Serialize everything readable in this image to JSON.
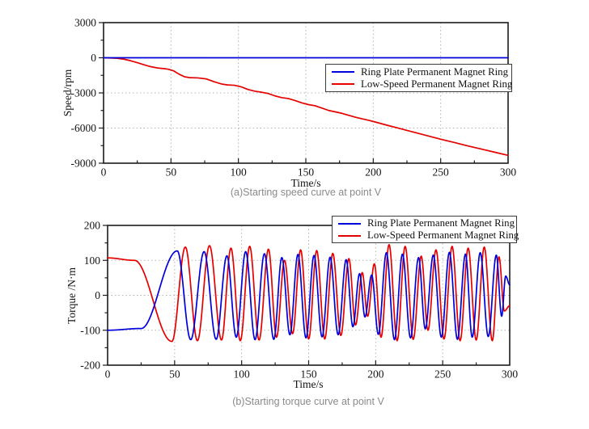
{
  "page": {
    "background": "#ffffff"
  },
  "colors": {
    "blue": "#0000dd",
    "red": "#e60000",
    "grid": "#b4b4b4",
    "caption": "#8a8a8a"
  },
  "chart_data": [
    {
      "id": "speed",
      "type": "line",
      "caption": "(a)Starting speed curve at point V",
      "xlabel": "Time/s",
      "ylabel": "Speed/rpm",
      "xlim": [
        0,
        300
      ],
      "ylim": [
        -9000,
        3000
      ],
      "xticks": [
        0,
        50,
        100,
        150,
        200,
        250,
        300
      ],
      "yticks": [
        3000,
        0,
        -3000,
        -6000,
        -9000
      ],
      "x_minor_step": 25,
      "y_minor_step": 1500,
      "grid": true,
      "legend": {
        "position": "inside-upper-right",
        "entries": [
          {
            "label": "Ring Plate Permanent Magnet Ring",
            "color": "#0000dd"
          },
          {
            "label": "Low-Speed Permanent Magnet Ring",
            "color": "#e60000"
          }
        ]
      },
      "series": [
        {
          "name": "Ring Plate Permanent Magnet Ring",
          "color": "#0000dd",
          "interp": "linear",
          "points": [
            [
              0,
              0
            ],
            [
              300,
              0
            ]
          ]
        },
        {
          "name": "Low-Speed Permanent Magnet Ring",
          "color": "#e60000",
          "interp": "linear",
          "points": [
            [
              0,
              0
            ],
            [
              5,
              -15
            ],
            [
              10,
              -45
            ],
            [
              15,
              -120
            ],
            [
              20,
              -250
            ],
            [
              25,
              -420
            ],
            [
              30,
              -600
            ],
            [
              35,
              -760
            ],
            [
              40,
              -870
            ],
            [
              45,
              -930
            ],
            [
              48,
              -980
            ],
            [
              52,
              -1120
            ],
            [
              56,
              -1400
            ],
            [
              60,
              -1620
            ],
            [
              64,
              -1700
            ],
            [
              70,
              -1720
            ],
            [
              76,
              -1800
            ],
            [
              82,
              -2050
            ],
            [
              88,
              -2250
            ],
            [
              92,
              -2320
            ],
            [
              97,
              -2350
            ],
            [
              102,
              -2480
            ],
            [
              107,
              -2700
            ],
            [
              112,
              -2850
            ],
            [
              117,
              -2940
            ],
            [
              122,
              -3050
            ],
            [
              127,
              -3250
            ],
            [
              132,
              -3400
            ],
            [
              137,
              -3480
            ],
            [
              142,
              -3650
            ],
            [
              147,
              -3850
            ],
            [
              152,
              -4000
            ],
            [
              157,
              -4100
            ],
            [
              162,
              -4300
            ],
            [
              167,
              -4500
            ],
            [
              172,
              -4620
            ],
            [
              177,
              -4750
            ],
            [
              182,
              -4920
            ],
            [
              187,
              -5080
            ],
            [
              192,
              -5220
            ],
            [
              197,
              -5350
            ],
            [
              202,
              -5500
            ],
            [
              210,
              -5750
            ],
            [
              220,
              -6050
            ],
            [
              230,
              -6350
            ],
            [
              240,
              -6650
            ],
            [
              250,
              -6950
            ],
            [
              260,
              -7230
            ],
            [
              270,
              -7520
            ],
            [
              280,
              -7790
            ],
            [
              290,
              -8060
            ],
            [
              300,
              -8330
            ]
          ]
        }
      ]
    },
    {
      "id": "torque",
      "type": "line",
      "caption": "(b)Starting torque curve at point V",
      "xlabel": "Time/s",
      "ylabel": "Torque /N·m",
      "xlim": [
        0,
        300
      ],
      "ylim": [
        -200,
        200
      ],
      "xticks": [
        0,
        50,
        100,
        150,
        200,
        250,
        300
      ],
      "yticks": [
        200,
        100,
        0,
        -100,
        -200
      ],
      "x_minor_step": 25,
      "y_minor_step": 50,
      "grid": true,
      "legend": {
        "position": "inside-upper-right",
        "entries": [
          {
            "label": "Ring Plate Permanent Magnet Ring",
            "color": "#0000dd"
          },
          {
            "label": "Low-Speed Permanent Magnet Ring",
            "color": "#e60000"
          }
        ]
      },
      "series": [
        {
          "name": "Ring Plate Permanent Magnet Ring",
          "color": "#0000dd",
          "interp": "cosine-extrema",
          "points": [
            [
              0,
              -100
            ],
            [
              25,
              -95
            ],
            [
              52,
              127
            ],
            [
              62,
              -127
            ],
            [
              72,
              125
            ],
            [
              81,
              -126
            ],
            [
              89,
              113
            ],
            [
              96,
              -120
            ],
            [
              103,
              125
            ],
            [
              110,
              -127
            ],
            [
              117,
              119
            ],
            [
              124,
              -126
            ],
            [
              130,
              108
            ],
            [
              136,
              -113
            ],
            [
              142,
              117
            ],
            [
              148,
              -122
            ],
            [
              154,
              114
            ],
            [
              160,
              -119
            ],
            [
              166,
              109
            ],
            [
              172,
              -113
            ],
            [
              178,
              102
            ],
            [
              183,
              -90
            ],
            [
              188,
              62
            ],
            [
              192,
              -62
            ],
            [
              197,
              58
            ],
            [
              202,
              -112
            ],
            [
              208,
              122
            ],
            [
              214,
              -127
            ],
            [
              220,
              118
            ],
            [
              226,
              -122
            ],
            [
              232,
              108
            ],
            [
              237,
              -96
            ],
            [
              243,
              115
            ],
            [
              249,
              -120
            ],
            [
              255,
              123
            ],
            [
              261,
              -126
            ],
            [
              267,
              118
            ],
            [
              272,
              -120
            ],
            [
              278,
              122
            ],
            [
              284,
              -118
            ],
            [
              290,
              115
            ],
            [
              294,
              -60
            ],
            [
              297,
              55
            ],
            [
              300,
              30
            ]
          ]
        },
        {
          "name": "Low-Speed Permanent Magnet Ring",
          "color": "#e60000",
          "interp": "cosine-extrema",
          "points": [
            [
              0,
              107
            ],
            [
              20,
              100
            ],
            [
              48,
              -132
            ],
            [
              58,
              138
            ],
            [
              67,
              -130
            ],
            [
              76,
              142
            ],
            [
              85,
              -128
            ],
            [
              92,
              135
            ],
            [
              99,
              -130
            ],
            [
              106,
              140
            ],
            [
              113,
              -128
            ],
            [
              120,
              132
            ],
            [
              126,
              -120
            ],
            [
              132,
              100
            ],
            [
              138,
              -110
            ],
            [
              144,
              130
            ],
            [
              150,
              -125
            ],
            [
              156,
              128
            ],
            [
              162,
              -125
            ],
            [
              168,
              120
            ],
            [
              174,
              -115
            ],
            [
              180,
              105
            ],
            [
              185,
              -85
            ],
            [
              190,
              65
            ],
            [
              194,
              -60
            ],
            [
              199,
              90
            ],
            [
              204,
              -120
            ],
            [
              210,
              145
            ],
            [
              216,
              -130
            ],
            [
              222,
              140
            ],
            [
              228,
              -126
            ],
            [
              234,
              112
            ],
            [
              239,
              -100
            ],
            [
              245,
              130
            ],
            [
              251,
              -125
            ],
            [
              257,
              140
            ],
            [
              263,
              -130
            ],
            [
              269,
              135
            ],
            [
              275,
              -128
            ],
            [
              281,
              138
            ],
            [
              287,
              -130
            ],
            [
              292,
              110
            ],
            [
              296,
              -45
            ],
            [
              300,
              -30
            ]
          ]
        }
      ]
    }
  ]
}
